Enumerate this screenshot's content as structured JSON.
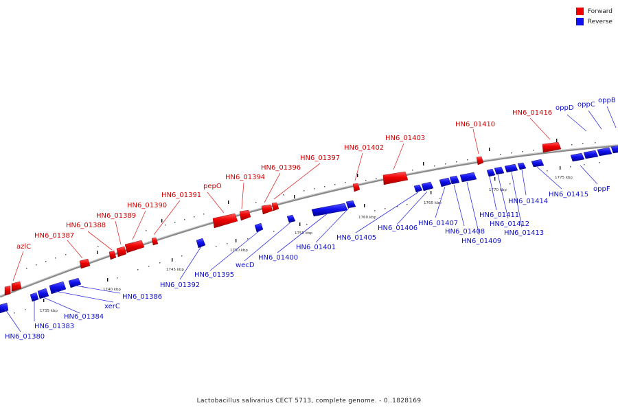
{
  "legend": {
    "forward": {
      "label": "Forward",
      "color": "#ee0000"
    },
    "reverse": {
      "label": "Reverse",
      "color": "#1010ee"
    }
  },
  "caption": "Lactobacillus salivarius CECT 5713, complete genome. - 0..1828169",
  "colors": {
    "forward": "#ee0000",
    "reverse": "#1010ee",
    "forward_label": "#d00000",
    "reverse_label": "#1010c8",
    "backbone": "#8a8a8a"
  },
  "scale_labels": [
    "1735 kbp",
    "1740 kbp",
    "1745 kbp",
    "1750 kbp",
    "1755 kbp",
    "1760 kbp",
    "1765 kbp",
    "1770 kbp",
    "1775 kbp"
  ],
  "forward_labels": [
    "azlC",
    "HN6_01387",
    "HN6_01388",
    "HN6_01389",
    "HN6_01390",
    "HN6_01391",
    "pepO",
    "HN6_01394",
    "HN6_01396",
    "HN6_01397",
    "HN6_01402",
    "HN6_01403",
    "HN6_01410",
    "HN6_01416"
  ],
  "reverse_labels": [
    "HN6_01380",
    "HN6_01383",
    "HN6_01384",
    "xerC",
    "HN6_01386",
    "HN6_01392",
    "HN6_01395",
    "wecD",
    "HN6_01400",
    "HN6_01401",
    "HN6_01405",
    "HN6_01406",
    "HN6_01407",
    "HN6_01408",
    "HN6_01409",
    "HN6_01411",
    "HN6_01412",
    "HN6_01413",
    "HN6_01414",
    "HN6_01415",
    "oppF",
    "oppD",
    "oppC",
    "oppB"
  ]
}
